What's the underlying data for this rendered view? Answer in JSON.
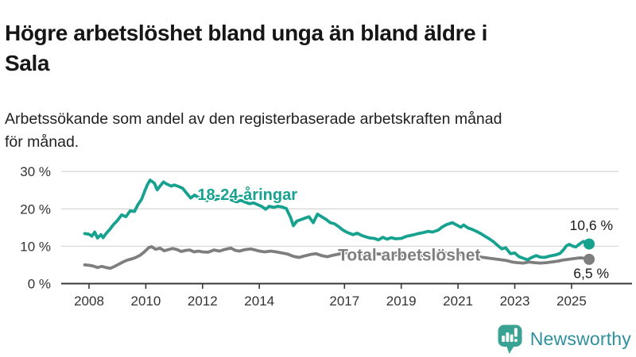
{
  "header": {
    "title_lines": [
      "Högre arbetslöshet bland unga än bland äldre i",
      "Sala"
    ],
    "subtitle_lines": [
      "Arbetssökande som andel av den registerbaserade arbetskraften månad",
      "för månad."
    ]
  },
  "chart_data": {
    "type": "line",
    "title": "Högre arbetslöshet bland unga än bland äldre i Sala",
    "subtitle": "Arbetssökande som andel av den registerbaserade arbetskraften månad för månad.",
    "unit": "%",
    "grid": true,
    "legend_position": "inline-labels",
    "x_axis": {
      "range": [
        2007.8,
        2026.4
      ],
      "tick_years": [
        2008,
        2010,
        2012,
        2014,
        2017,
        2019,
        2021,
        2023,
        2025
      ],
      "tick_labels": [
        "2008",
        "2010",
        "2012",
        "2014",
        "2017",
        "2019",
        "2021",
        "2023",
        "2025"
      ]
    },
    "y_axis": {
      "range": [
        0,
        31
      ],
      "ticks": [
        {
          "value": 30,
          "label": "30 %"
        },
        {
          "value": 20,
          "label": "20 %"
        },
        {
          "value": 10,
          "label": "10 %"
        },
        {
          "value": 0,
          "label": "0 %"
        }
      ]
    },
    "colors": {
      "grid": "#d9d9d9",
      "axis": "#383838",
      "tick_text": "#333333",
      "value_label_text": "#1a1a1a"
    },
    "series": [
      {
        "name": "18-24-åringar",
        "color": "#17a28f",
        "end_value": 10.6,
        "end_label": "10,6 %",
        "label_pos": {
          "year": 2011.82,
          "value": 22.4
        },
        "points": [
          [
            2007.85,
            13.4
          ],
          [
            2008.0,
            13.2
          ],
          [
            2008.1,
            12.7
          ],
          [
            2008.2,
            13.8
          ],
          [
            2008.3,
            12.2
          ],
          [
            2008.42,
            13.1
          ],
          [
            2008.5,
            12.3
          ],
          [
            2008.6,
            13.4
          ],
          [
            2008.72,
            14.4
          ],
          [
            2008.85,
            15.7
          ],
          [
            2009.0,
            16.9
          ],
          [
            2009.15,
            18.4
          ],
          [
            2009.3,
            17.9
          ],
          [
            2009.45,
            19.5
          ],
          [
            2009.6,
            19.3
          ],
          [
            2009.72,
            21.1
          ],
          [
            2009.85,
            22.5
          ],
          [
            2009.95,
            24.5
          ],
          [
            2010.05,
            26.4
          ],
          [
            2010.15,
            27.7
          ],
          [
            2010.3,
            26.9
          ],
          [
            2010.4,
            25.1
          ],
          [
            2010.5,
            26.1
          ],
          [
            2010.62,
            27.2
          ],
          [
            2010.75,
            26.6
          ],
          [
            2010.9,
            26.1
          ],
          [
            2011.0,
            26.4
          ],
          [
            2011.15,
            26.0
          ],
          [
            2011.3,
            25.5
          ],
          [
            2011.45,
            24.1
          ],
          [
            2011.58,
            22.9
          ],
          [
            2011.72,
            23.7
          ],
          [
            2011.85,
            23.1
          ],
          [
            2012.0,
            22.7
          ],
          [
            2012.15,
            22.2
          ],
          [
            2012.3,
            23.0
          ],
          [
            2012.45,
            22.5
          ],
          [
            2012.6,
            22.9
          ],
          [
            2012.75,
            22.4
          ],
          [
            2012.9,
            22.8
          ],
          [
            2013.05,
            22.3
          ],
          [
            2013.2,
            21.9
          ],
          [
            2013.35,
            22.3
          ],
          [
            2013.5,
            21.8
          ],
          [
            2013.65,
            21.4
          ],
          [
            2013.8,
            21.6
          ],
          [
            2013.95,
            21.1
          ],
          [
            2014.1,
            20.6
          ],
          [
            2014.22,
            19.9
          ],
          [
            2014.35,
            20.7
          ],
          [
            2014.5,
            20.4
          ],
          [
            2014.65,
            20.7
          ],
          [
            2014.8,
            20.5
          ],
          [
            2014.95,
            20.1
          ],
          [
            2015.1,
            17.7
          ],
          [
            2015.2,
            15.5
          ],
          [
            2015.32,
            16.7
          ],
          [
            2015.45,
            17.1
          ],
          [
            2015.6,
            17.5
          ],
          [
            2015.75,
            17.9
          ],
          [
            2015.9,
            16.3
          ],
          [
            2016.05,
            18.6
          ],
          [
            2016.2,
            17.9
          ],
          [
            2016.35,
            17.2
          ],
          [
            2016.5,
            16.3
          ],
          [
            2016.65,
            16.0
          ],
          [
            2016.8,
            15.2
          ],
          [
            2016.95,
            14.3
          ],
          [
            2017.1,
            13.7
          ],
          [
            2017.3,
            13.1
          ],
          [
            2017.45,
            13.5
          ],
          [
            2017.6,
            12.9
          ],
          [
            2017.75,
            12.5
          ],
          [
            2017.9,
            12.2
          ],
          [
            2018.05,
            12.1
          ],
          [
            2018.2,
            11.7
          ],
          [
            2018.35,
            12.4
          ],
          [
            2018.5,
            11.9
          ],
          [
            2018.65,
            12.3
          ],
          [
            2018.8,
            12.0
          ],
          [
            2019.0,
            12.1
          ],
          [
            2019.2,
            12.7
          ],
          [
            2019.4,
            13.0
          ],
          [
            2019.6,
            13.4
          ],
          [
            2019.8,
            13.7
          ],
          [
            2019.95,
            14.0
          ],
          [
            2020.1,
            13.8
          ],
          [
            2020.3,
            14.3
          ],
          [
            2020.45,
            15.2
          ],
          [
            2020.6,
            15.8
          ],
          [
            2020.8,
            16.3
          ],
          [
            2020.95,
            15.7
          ],
          [
            2021.1,
            15.1
          ],
          [
            2021.2,
            15.7
          ],
          [
            2021.35,
            14.9
          ],
          [
            2021.5,
            14.5
          ],
          [
            2021.65,
            14.0
          ],
          [
            2021.8,
            13.4
          ],
          [
            2021.95,
            12.7
          ],
          [
            2022.1,
            12.0
          ],
          [
            2022.25,
            11.2
          ],
          [
            2022.4,
            10.2
          ],
          [
            2022.55,
            9.3
          ],
          [
            2022.68,
            9.6
          ],
          [
            2022.85,
            8.0
          ],
          [
            2023.0,
            8.2
          ],
          [
            2023.15,
            7.2
          ],
          [
            2023.3,
            6.8
          ],
          [
            2023.45,
            6.4
          ],
          [
            2023.6,
            7.0
          ],
          [
            2023.75,
            7.5
          ],
          [
            2023.9,
            7.1
          ],
          [
            2024.05,
            7.0
          ],
          [
            2024.25,
            7.4
          ],
          [
            2024.45,
            7.7
          ],
          [
            2024.6,
            8.1
          ],
          [
            2024.72,
            9.1
          ],
          [
            2024.82,
            10.1
          ],
          [
            2024.92,
            10.5
          ],
          [
            2025.05,
            10.0
          ],
          [
            2025.15,
            9.8
          ],
          [
            2025.3,
            10.7
          ],
          [
            2025.42,
            11.3
          ],
          [
            2025.52,
            11.0
          ],
          [
            2025.62,
            10.6
          ]
        ]
      },
      {
        "name": "Total arbetslöshet",
        "color": "#7e7e7e",
        "end_value": 6.5,
        "end_label": "6,5 %",
        "label_pos": {
          "year": 2016.77,
          "value": 6.2
        },
        "points": [
          [
            2007.85,
            5.0
          ],
          [
            2008.0,
            4.9
          ],
          [
            2008.15,
            4.7
          ],
          [
            2008.3,
            4.3
          ],
          [
            2008.45,
            4.6
          ],
          [
            2008.6,
            4.3
          ],
          [
            2008.75,
            4.1
          ],
          [
            2008.9,
            4.6
          ],
          [
            2009.05,
            5.2
          ],
          [
            2009.2,
            5.8
          ],
          [
            2009.35,
            6.3
          ],
          [
            2009.5,
            6.6
          ],
          [
            2009.65,
            7.0
          ],
          [
            2009.8,
            7.6
          ],
          [
            2009.95,
            8.5
          ],
          [
            2010.1,
            9.6
          ],
          [
            2010.2,
            9.9
          ],
          [
            2010.35,
            9.2
          ],
          [
            2010.5,
            9.5
          ],
          [
            2010.65,
            8.8
          ],
          [
            2010.8,
            9.1
          ],
          [
            2010.95,
            9.4
          ],
          [
            2011.1,
            9.1
          ],
          [
            2011.25,
            8.6
          ],
          [
            2011.4,
            8.9
          ],
          [
            2011.55,
            9.0
          ],
          [
            2011.7,
            8.5
          ],
          [
            2011.85,
            8.7
          ],
          [
            2012.0,
            8.5
          ],
          [
            2012.2,
            8.4
          ],
          [
            2012.4,
            9.0
          ],
          [
            2012.6,
            8.7
          ],
          [
            2012.8,
            9.2
          ],
          [
            2013.0,
            9.5
          ],
          [
            2013.15,
            8.9
          ],
          [
            2013.3,
            8.7
          ],
          [
            2013.5,
            9.1
          ],
          [
            2013.7,
            9.3
          ],
          [
            2013.85,
            9.0
          ],
          [
            2014.0,
            8.7
          ],
          [
            2014.2,
            8.5
          ],
          [
            2014.4,
            8.7
          ],
          [
            2014.6,
            8.5
          ],
          [
            2014.8,
            8.2
          ],
          [
            2015.0,
            7.9
          ],
          [
            2015.2,
            7.3
          ],
          [
            2015.4,
            7.0
          ],
          [
            2015.6,
            7.4
          ],
          [
            2015.8,
            7.8
          ],
          [
            2016.0,
            8.0
          ],
          [
            2016.2,
            7.5
          ],
          [
            2016.4,
            7.2
          ],
          [
            2016.6,
            7.6
          ],
          [
            2016.8,
            7.9
          ],
          [
            2017.0,
            8.2
          ],
          [
            2017.2,
            8.4
          ],
          [
            2017.4,
            8.0
          ],
          [
            2017.6,
            7.9
          ],
          [
            2017.8,
            8.1
          ],
          [
            2018.0,
            8.0
          ],
          [
            2018.3,
            7.9
          ],
          [
            2018.6,
            7.7
          ],
          [
            2018.9,
            7.6
          ],
          [
            2019.2,
            7.4
          ],
          [
            2019.5,
            7.3
          ],
          [
            2019.8,
            7.5
          ],
          [
            2020.1,
            7.9
          ],
          [
            2020.4,
            8.3
          ],
          [
            2020.7,
            8.1
          ],
          [
            2021.0,
            7.9
          ],
          [
            2021.3,
            7.6
          ],
          [
            2021.6,
            7.3
          ],
          [
            2021.9,
            7.0
          ],
          [
            2022.1,
            6.8
          ],
          [
            2022.3,
            6.6
          ],
          [
            2022.5,
            6.4
          ],
          [
            2022.7,
            6.2
          ],
          [
            2022.9,
            5.8
          ],
          [
            2023.1,
            5.6
          ],
          [
            2023.3,
            5.5
          ],
          [
            2023.5,
            5.8
          ],
          [
            2023.7,
            5.6
          ],
          [
            2023.9,
            5.5
          ],
          [
            2024.1,
            5.6
          ],
          [
            2024.3,
            5.8
          ],
          [
            2024.5,
            6.0
          ],
          [
            2024.7,
            6.3
          ],
          [
            2024.9,
            6.5
          ],
          [
            2025.1,
            6.7
          ],
          [
            2025.3,
            6.9
          ],
          [
            2025.45,
            6.8
          ],
          [
            2025.62,
            6.5
          ]
        ]
      }
    ]
  },
  "branding": {
    "logo_text": "Newsworthy",
    "logo_icon": "bar-chart-speech-bubble-icon",
    "icon_color": "#3aa292",
    "text_color": "#2e909c"
  }
}
